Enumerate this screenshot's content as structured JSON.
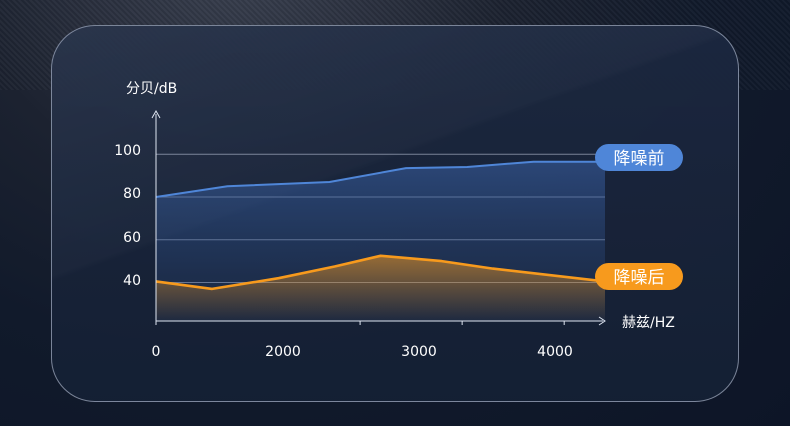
{
  "chart_data": {
    "type": "line",
    "ylabel": "分贝/dB",
    "xlabel": "赫兹/HZ",
    "xlim": [
      0,
      4400
    ],
    "ylim": [
      22,
      116
    ],
    "x_ticks": [
      "0",
      "2000",
      "3000",
      "4000"
    ],
    "y_ticks": [
      "40",
      "60",
      "80",
      "100"
    ],
    "grid": true,
    "series": [
      {
        "name": "降噪前",
        "color": "#4f86d8",
        "x": [
          0,
          700,
          1700,
          2450,
          3050,
          3700,
          4400
        ],
        "y": [
          80,
          85,
          87,
          93.5,
          94,
          96.5,
          96.5
        ]
      },
      {
        "name": "降噪后",
        "color": "#f79a1d",
        "x": [
          0,
          550,
          1200,
          1750,
          2200,
          2800,
          3300,
          4400
        ],
        "y": [
          40.5,
          37,
          42,
          47.5,
          52.5,
          50,
          46.5,
          40.5
        ]
      }
    ]
  }
}
